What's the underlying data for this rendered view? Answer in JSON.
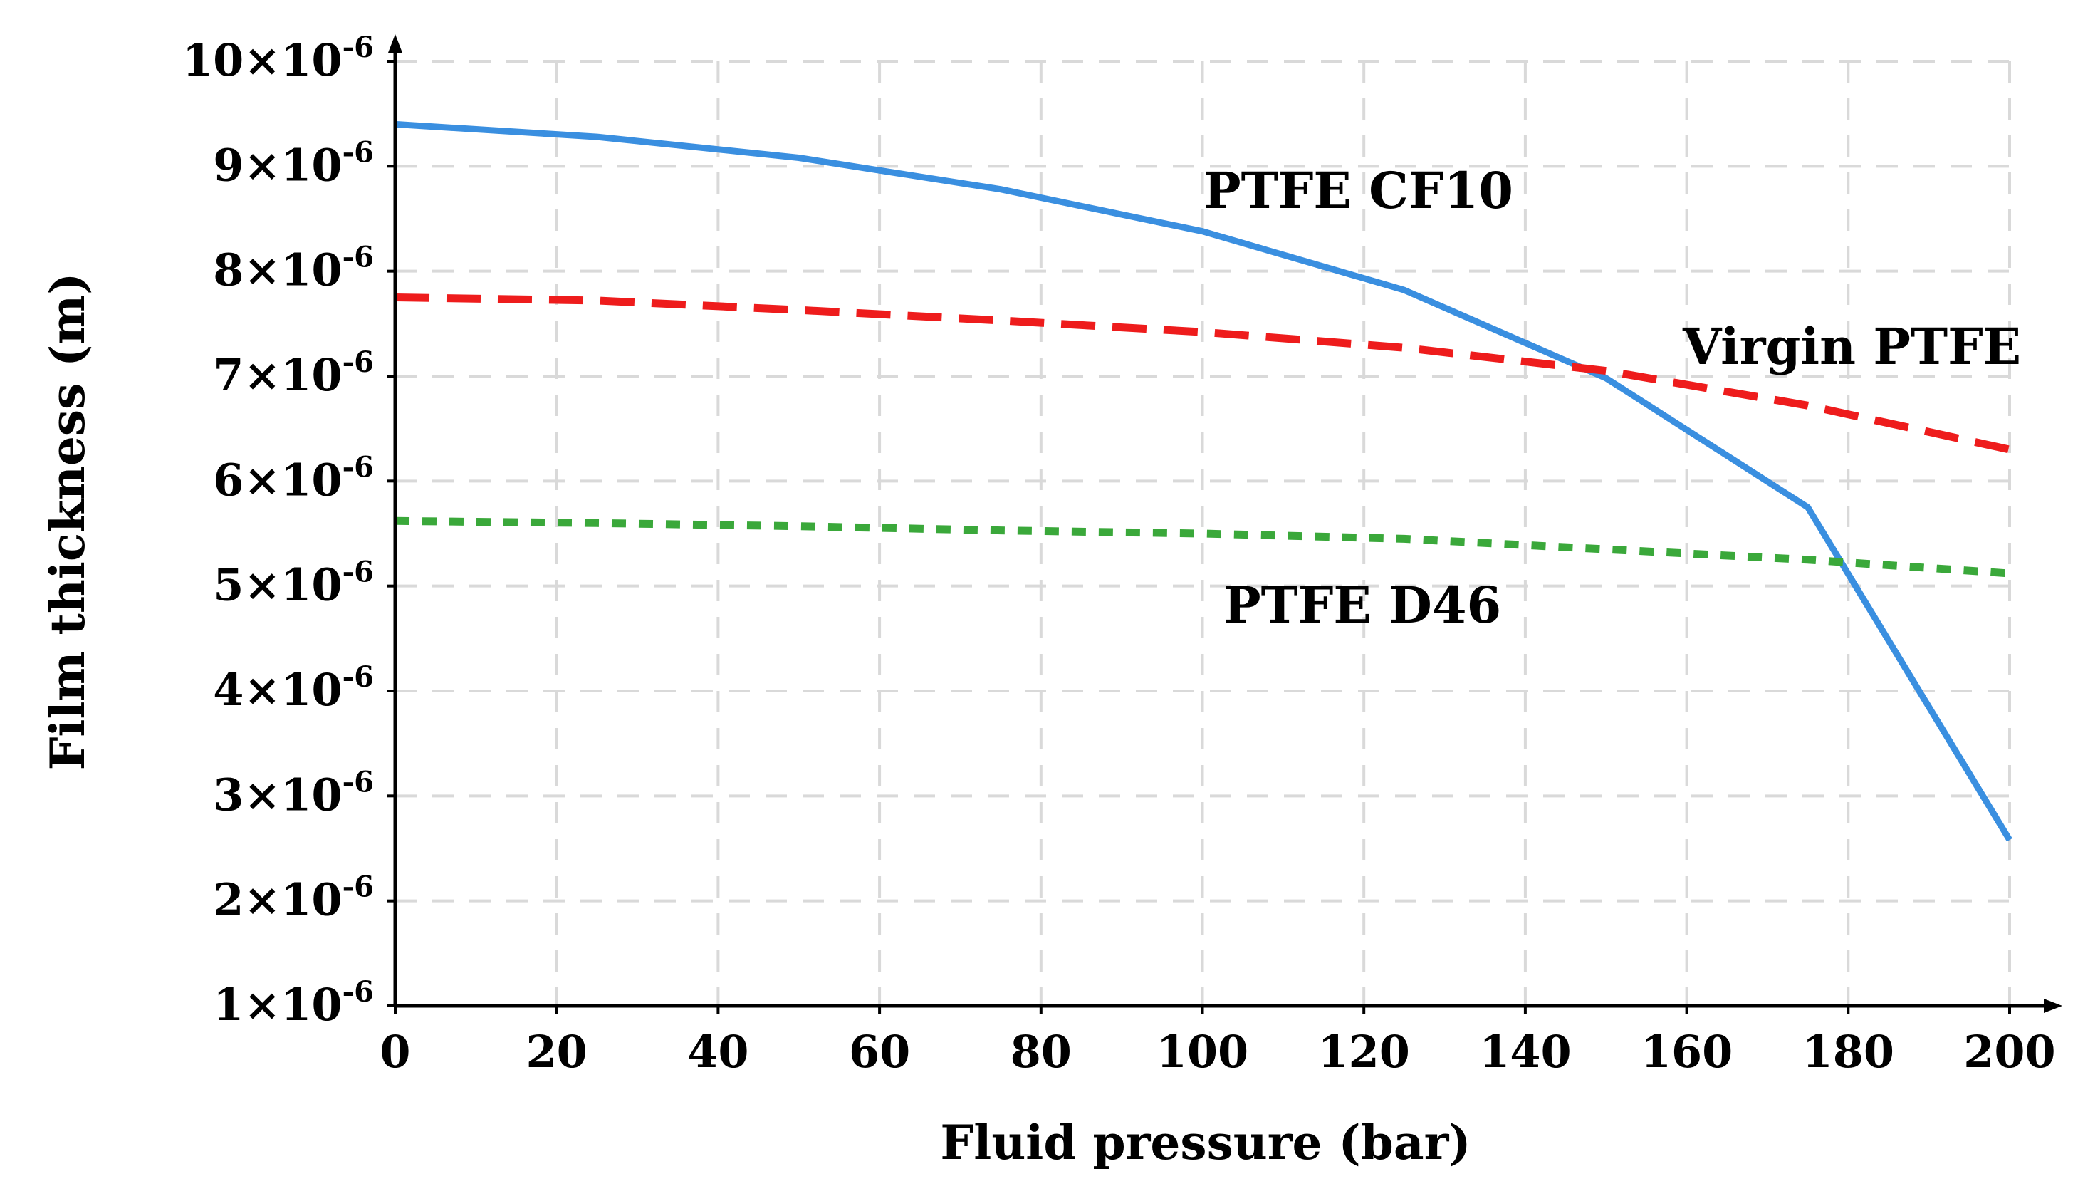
{
  "chart_data": {
    "type": "line",
    "xlabel": "Fluid pressure (bar)",
    "ylabel": "Film thickness (m)",
    "xlim": [
      0,
      200
    ],
    "ylim": [
      1,
      10
    ],
    "x_ticks": [
      "0",
      "20",
      "40",
      "60",
      "80",
      "100",
      "120",
      "140",
      "160",
      "180",
      "200"
    ],
    "y_ticks": [
      {
        "mant": "1×10",
        "exp": "-6"
      },
      {
        "mant": "2×10",
        "exp": "-6"
      },
      {
        "mant": "3×10",
        "exp": "-6"
      },
      {
        "mant": "4×10",
        "exp": "-6"
      },
      {
        "mant": "5×10",
        "exp": "-6"
      },
      {
        "mant": "6×10",
        "exp": "-6"
      },
      {
        "mant": "7×10",
        "exp": "-6"
      },
      {
        "mant": "8×10",
        "exp": "-6"
      },
      {
        "mant": "9×10",
        "exp": "-6"
      },
      {
        "mant": "10×10",
        "exp": "-6"
      }
    ],
    "grid": true,
    "series": [
      {
        "name": "PTFE CF10",
        "color": "#3a8fe0",
        "style": "solid",
        "x": [
          0,
          25,
          50,
          75,
          100,
          125,
          150,
          175,
          200
        ],
        "y": [
          9.4,
          9.28,
          9.08,
          8.78,
          8.38,
          7.82,
          6.98,
          5.75,
          2.58
        ]
      },
      {
        "name": "Virgin PTFE",
        "color": "#ee1c1c",
        "style": "dashed",
        "x": [
          0,
          25,
          50,
          75,
          100,
          125,
          150,
          175,
          200
        ],
        "y": [
          7.75,
          7.72,
          7.63,
          7.53,
          7.42,
          7.27,
          7.05,
          6.72,
          6.3
        ]
      },
      {
        "name": "PTFE D46",
        "color": "#3aa83a",
        "style": "dotted",
        "x": [
          0,
          25,
          50,
          75,
          100,
          125,
          150,
          175,
          200
        ],
        "y": [
          5.62,
          5.6,
          5.57,
          5.53,
          5.5,
          5.45,
          5.35,
          5.25,
          5.12
        ]
      }
    ],
    "annotations": [
      {
        "text": "PTFE CF10",
        "series": "PTFE CF10"
      },
      {
        "text": "Virgin PTFE",
        "series": "Virgin PTFE"
      },
      {
        "text": "PTFE D46",
        "series": "PTFE D46"
      }
    ]
  }
}
